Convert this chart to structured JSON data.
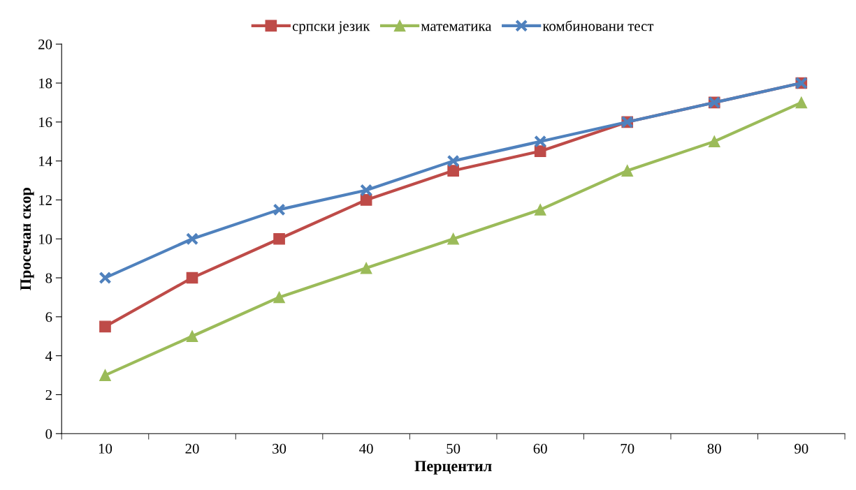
{
  "chart_data": {
    "type": "line",
    "xlabel": "Перцентил",
    "ylabel": "Просечан скор",
    "categories": [
      "10",
      "20",
      "30",
      "40",
      "50",
      "60",
      "70",
      "80",
      "90"
    ],
    "ylim": [
      0,
      20
    ],
    "yticks": [
      0,
      2,
      4,
      6,
      8,
      10,
      12,
      14,
      16,
      18,
      20
    ],
    "grid": false,
    "legend": "top",
    "line_style": "solid",
    "series": [
      {
        "name": "српски језик",
        "color": "#be4b48",
        "marker": "square",
        "values": [
          5.5,
          8,
          10,
          12,
          13.5,
          14.5,
          16,
          17,
          18
        ]
      },
      {
        "name": "математика",
        "color": "#9bbb59",
        "marker": "triangle",
        "values": [
          3,
          5,
          7,
          8.5,
          10,
          11.5,
          13.5,
          15,
          17
        ]
      },
      {
        "name": "комбиновани тест",
        "color": "#4f81bd",
        "marker": "cross",
        "values": [
          8,
          10,
          11.5,
          12.5,
          14,
          15,
          16,
          17,
          18
        ]
      }
    ]
  }
}
